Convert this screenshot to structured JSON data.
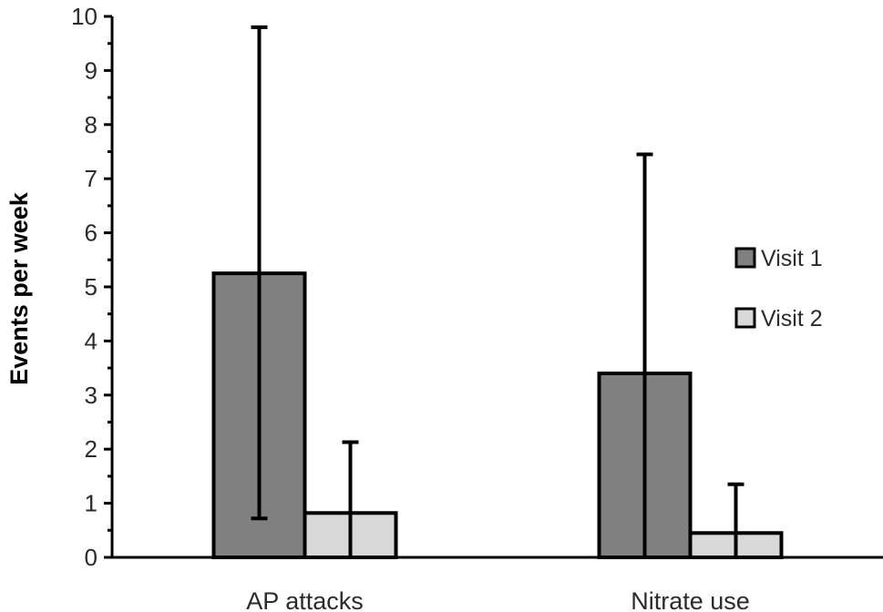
{
  "chart_data": {
    "type": "bar",
    "ylabel": "Events per  week",
    "xlabel": "",
    "ylim": [
      0,
      10
    ],
    "yticks": [
      0,
      1,
      2,
      3,
      4,
      5,
      6,
      7,
      8,
      9,
      10
    ],
    "categories": [
      "AP attacks",
      "Nitrate use"
    ],
    "series": [
      {
        "name": "Visit 1",
        "color": "#808080",
        "values": [
          5.25,
          3.4
        ],
        "error_upper": [
          9.8,
          7.45
        ],
        "error_lower": [
          0.72,
          0.0
        ]
      },
      {
        "name": "Visit 2",
        "color": "#d9d9d9",
        "values": [
          0.82,
          0.45
        ],
        "error_upper": [
          2.13,
          1.35
        ],
        "error_lower": [
          0.0,
          0.0
        ]
      }
    ],
    "legend": {
      "position": "right",
      "entries": [
        "Visit 1",
        "Visit 2"
      ]
    },
    "grid": false
  }
}
